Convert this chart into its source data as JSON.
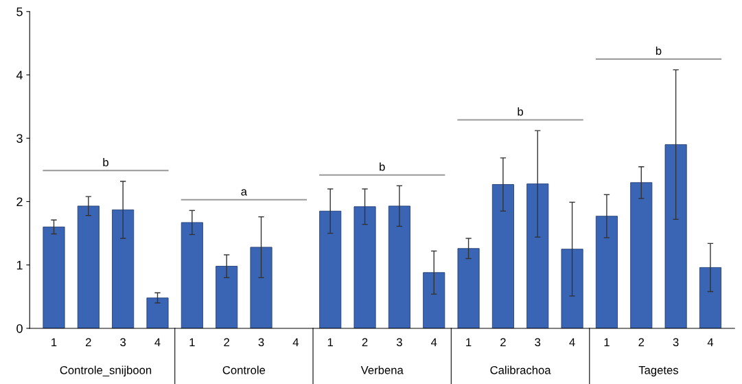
{
  "chart_data": {
    "type": "bar",
    "categories": [
      "1",
      "2",
      "3",
      "4",
      "1",
      "2",
      "3",
      "4",
      "1",
      "2",
      "3",
      "4",
      "1",
      "2",
      "3",
      "4",
      "1",
      "2",
      "3",
      "4"
    ],
    "values": [
      1.6,
      1.93,
      1.87,
      0.48,
      1.67,
      0.98,
      1.28,
      null,
      1.85,
      1.92,
      1.93,
      0.88,
      1.26,
      2.27,
      2.28,
      1.25,
      1.77,
      2.3,
      2.9,
      0.96
    ],
    "errors": [
      0.11,
      0.15,
      0.45,
      0.08,
      0.19,
      0.18,
      0.48,
      null,
      0.35,
      0.28,
      0.32,
      0.34,
      0.16,
      0.42,
      0.84,
      0.74,
      0.34,
      0.25,
      1.18,
      0.38
    ],
    "color": "#3a64b4",
    "ylim": [
      0,
      5
    ],
    "yticks": [
      0,
      1,
      2,
      3,
      4,
      5
    ],
    "grid": false,
    "annotations": [
      "b",
      "a",
      "b",
      "b",
      "b",
      "Controle_snijboon",
      "Controle",
      "Verbena",
      "Calibrachoa",
      "Tagetes"
    ]
  }
}
